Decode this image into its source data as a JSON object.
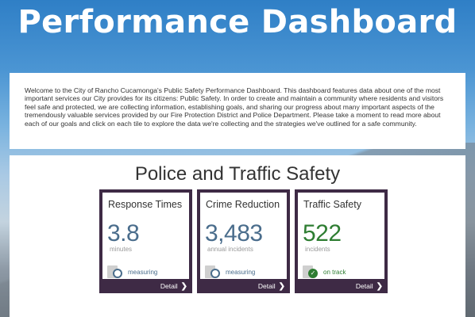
{
  "header": {
    "title": "Performance Dashboard"
  },
  "intro": {
    "text": "Welcome to the City of Rancho Cucamonga's Public Safety Performance Dashboard. This dashboard features data about one of the most important services our City provides for its citizens: Public Safety. In order to create and maintain a community where residents and visitors feel safe and protected, we are collecting information, establishing goals, and sharing our progress about many important aspects of the tremendously valuable services provided by our Fire Protection District and Police Department. Please take a moment to read more about each of our goals and click on each tile to explore the data we're collecting and the strategies we've outlined for a safe community."
  },
  "section": {
    "title": "Police and Traffic Safety"
  },
  "tiles": [
    {
      "name": "Response Times",
      "value": "3.8",
      "unit": "minutes",
      "status": "measuring",
      "status_icon": "measuring-icon",
      "detail_label": "Detail",
      "value_color": "#4a6d8c"
    },
    {
      "name": "Crime Reduction",
      "value": "3,483",
      "unit": "annual incidents",
      "status": "measuring",
      "status_icon": "measuring-icon",
      "detail_label": "Detail",
      "value_color": "#4a6d8c"
    },
    {
      "name": "Traffic Safety",
      "value": "522",
      "unit": "incidents",
      "status": "on track",
      "status_icon": "on-track-check-icon",
      "detail_label": "Detail",
      "value_color": "#2e7d32"
    }
  ],
  "colors": {
    "header_blue": "#2f7fc6",
    "tile_border": "#3e2a45",
    "measuring": "#4a6d8c",
    "on_track": "#2e7d32"
  }
}
